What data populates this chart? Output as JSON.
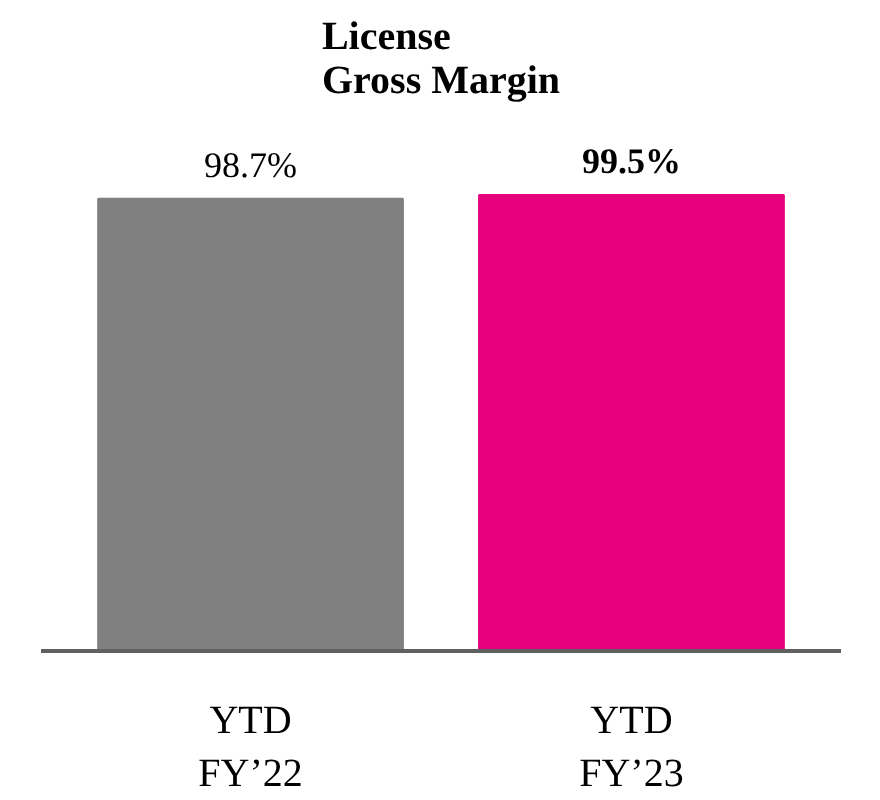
{
  "chart_data": {
    "type": "bar",
    "title": "License\nGross Margin",
    "categories": [
      "YTD\nFY’22",
      "YTD\nFY’23"
    ],
    "values": [
      98.7,
      99.5
    ],
    "colors": [
      "#808080",
      "#e6007e"
    ],
    "value_labels": [
      "98.7%",
      "99.5%"
    ],
    "grid": false
  }
}
